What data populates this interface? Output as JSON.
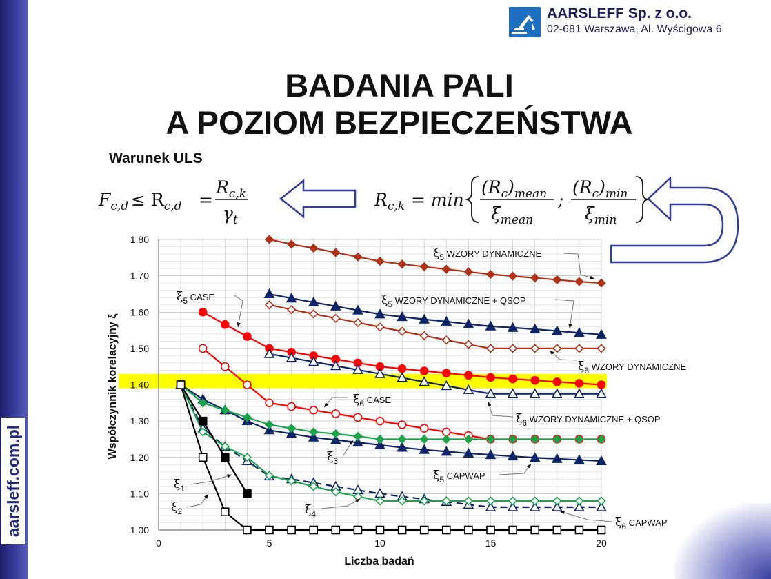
{
  "side_url": "aarsleff.com.pl",
  "logo": {
    "name": "AARSLEFF Sp. z o.o.",
    "address": "02-681 Warszawa, Al. Wyścigowa 6"
  },
  "title": {
    "line1": "BADANIA PALI",
    "line2": "A POZIOM BEZPIECZEŃSTWA"
  },
  "uls_label": "Warunek ULS",
  "formula_left": {
    "lhs": "F",
    "lhs_sub": "c,d",
    "leq": "≤ R",
    "r_sub": "c,d",
    "eq": "=",
    "num": "R",
    "num_sub": "c,k",
    "den": "γ",
    "den_sub": "t"
  },
  "formula_right": {
    "lhs": "R",
    "lhs_sub": "c,k",
    "eq": "= min",
    "n1": "(R",
    "n1_sub": "c",
    "n1_rest": ")",
    "n1_sub2": "mean",
    "d1": "ξ",
    "d1_sub": "mean",
    "sep": ";",
    "n2": "(R",
    "n2_sub": "c",
    "n2_rest": ")",
    "n2_sub2": "min",
    "d2": "ξ",
    "d2_sub": "min"
  },
  "colors": {
    "navy": "#0d2566",
    "red": "#ff0000",
    "darkred": "#b03218",
    "green": "#1aa34a",
    "black": "#000000",
    "highlight": "#ffff00",
    "arrow": "#2e3e9a"
  },
  "chart_data": {
    "type": "line",
    "xlabel": "Liczba badań",
    "ylabel": "Współczynnik korelacyjny ξ",
    "xlim": [
      0,
      20
    ],
    "ylim": [
      1.0,
      1.8
    ],
    "xticks": [
      "0",
      "5",
      "10",
      "15",
      "20"
    ],
    "xtick_values": [
      0,
      5,
      10,
      15,
      20
    ],
    "yticks": [
      "1.00",
      "1.10",
      "1.20",
      "1.30",
      "1.40",
      "1.50",
      "1.60",
      "1.70",
      "1.80"
    ],
    "ytick_values": [
      1.0,
      1.1,
      1.2,
      1.3,
      1.4,
      1.5,
      1.6,
      1.7,
      1.8
    ],
    "grid": true,
    "highlight_band": [
      1.39,
      1.43
    ],
    "series": [
      {
        "id": "xi5_dyn",
        "color": "#b03218",
        "marker": "diamond-filled",
        "dashed": false,
        "x": [
          5,
          6,
          7,
          8,
          9,
          10,
          11,
          12,
          13,
          14,
          15,
          16,
          17,
          18,
          19,
          20
        ],
        "y": [
          1.8,
          1.787,
          1.776,
          1.764,
          1.752,
          1.74,
          1.732,
          1.725,
          1.718,
          1.711,
          1.704,
          1.699,
          1.694,
          1.689,
          1.684,
          1.68
        ]
      },
      {
        "id": "xi5_dyn_qsop",
        "color": "#0d2566",
        "marker": "triangle-filled",
        "dashed": false,
        "x": [
          5,
          6,
          7,
          8,
          9,
          10,
          11,
          12,
          13,
          14,
          15,
          16,
          17,
          18,
          19,
          20
        ],
        "y": [
          1.65,
          1.638,
          1.627,
          1.616,
          1.605,
          1.594,
          1.587,
          1.58,
          1.574,
          1.567,
          1.561,
          1.557,
          1.553,
          1.548,
          1.543,
          1.538
        ]
      },
      {
        "id": "xi6_dyn",
        "color": "#b03218",
        "marker": "diamond-open",
        "dashed": false,
        "x": [
          5,
          6,
          7,
          8,
          9,
          10,
          11,
          12,
          13,
          14,
          15,
          16,
          17,
          18,
          19,
          20
        ],
        "y": [
          1.62,
          1.607,
          1.595,
          1.583,
          1.571,
          1.559,
          1.547,
          1.535,
          1.523,
          1.511,
          1.5,
          1.5,
          1.5,
          1.5,
          1.5,
          1.5
        ]
      },
      {
        "id": "xi5_case",
        "color": "#ff0000",
        "marker": "circle-filled",
        "dashed": false,
        "x": [
          2,
          3,
          4,
          5,
          6,
          7,
          8,
          9,
          10,
          11,
          12,
          13,
          14,
          15,
          16,
          17,
          18,
          19,
          20
        ],
        "y": [
          1.6,
          1.566,
          1.533,
          1.5,
          1.49,
          1.48,
          1.47,
          1.46,
          1.45,
          1.444,
          1.438,
          1.432,
          1.426,
          1.42,
          1.416,
          1.412,
          1.408,
          1.404,
          1.4
        ]
      },
      {
        "id": "xi6_dyn_qsop",
        "color": "#0d2566",
        "marker": "triangle-open",
        "dashed": false,
        "x": [
          5,
          6,
          7,
          8,
          9,
          10,
          11,
          12,
          13,
          14,
          15,
          16,
          17,
          18,
          19,
          20
        ],
        "y": [
          1.485,
          1.474,
          1.463,
          1.452,
          1.441,
          1.43,
          1.419,
          1.408,
          1.397,
          1.386,
          1.375,
          1.375,
          1.375,
          1.375,
          1.375,
          1.375
        ]
      },
      {
        "id": "xi6_case",
        "color": "#ff0000",
        "marker": "circle-open",
        "dashed": false,
        "x": [
          2,
          3,
          4,
          5,
          6,
          7,
          8,
          9,
          10,
          11,
          12,
          13,
          14,
          15,
          16,
          17,
          18,
          19,
          20
        ],
        "y": [
          1.5,
          1.45,
          1.4,
          1.35,
          1.34,
          1.33,
          1.32,
          1.31,
          1.3,
          1.29,
          1.28,
          1.27,
          1.26,
          1.25,
          1.25,
          1.25,
          1.25,
          1.25,
          1.25
        ]
      },
      {
        "id": "xi5_capwap",
        "color": "#0d2566",
        "marker": "triangle-filled",
        "dashed": false,
        "x": [
          1,
          2,
          3,
          4,
          5,
          6,
          7,
          8,
          9,
          10,
          11,
          12,
          13,
          14,
          15,
          16,
          17,
          18,
          19,
          20
        ],
        "y": [
          1.4,
          1.36,
          1.33,
          1.3,
          1.275,
          1.265,
          1.255,
          1.248,
          1.241,
          1.234,
          1.227,
          1.221,
          1.216,
          1.211,
          1.207,
          1.203,
          1.199,
          1.196,
          1.193,
          1.19
        ]
      },
      {
        "id": "xi3",
        "color": "#1aa34a",
        "marker": "diamond-filled",
        "dashed": false,
        "x": [
          1,
          2,
          3,
          4,
          5,
          6,
          7,
          8,
          9,
          10,
          11,
          12,
          13,
          14,
          15,
          16,
          17,
          18,
          19,
          20
        ],
        "y": [
          1.4,
          1.35,
          1.33,
          1.31,
          1.29,
          1.28,
          1.27,
          1.265,
          1.258,
          1.25,
          1.25,
          1.25,
          1.25,
          1.25,
          1.25,
          1.25,
          1.25,
          1.25,
          1.25,
          1.25
        ]
      },
      {
        "id": "xi6_capwap",
        "color": "#0d2566",
        "marker": "triangle-open",
        "dashed": true,
        "x": [
          1,
          2,
          3,
          4,
          5,
          6,
          7,
          8,
          9,
          10,
          11,
          12,
          13,
          14,
          15,
          16,
          17,
          18,
          19,
          20
        ],
        "y": [
          1.4,
          1.28,
          1.23,
          1.19,
          1.148,
          1.14,
          1.13,
          1.12,
          1.11,
          1.1,
          1.092,
          1.085,
          1.078,
          1.07,
          1.063,
          1.063,
          1.063,
          1.063,
          1.063,
          1.063
        ]
      },
      {
        "id": "xi4",
        "color": "#1aa34a",
        "marker": "diamond-open",
        "dashed": false,
        "x": [
          1,
          2,
          3,
          4,
          5,
          6,
          7,
          8,
          9,
          10,
          11,
          12,
          13,
          14,
          15,
          16,
          17,
          18,
          19,
          20
        ],
        "y": [
          1.4,
          1.27,
          1.23,
          1.2,
          1.15,
          1.135,
          1.12,
          1.105,
          1.092,
          1.08,
          1.08,
          1.08,
          1.08,
          1.08,
          1.08,
          1.08,
          1.08,
          1.08,
          1.08,
          1.08
        ]
      },
      {
        "id": "xi1",
        "color": "#000000",
        "marker": "square-filled",
        "dashed": false,
        "x": [
          1,
          2,
          3,
          4
        ],
        "y": [
          1.4,
          1.3,
          1.2,
          1.1
        ]
      },
      {
        "id": "xi2",
        "color": "#000000",
        "marker": "square-open",
        "dashed": false,
        "x": [
          1,
          2,
          3,
          4,
          5,
          6,
          7,
          8,
          9,
          10,
          11,
          12,
          13,
          14,
          15,
          16,
          17,
          18,
          19,
          20
        ],
        "y": [
          1.4,
          1.2,
          1.05,
          1.0,
          1.0,
          1.0,
          1.0,
          1.0,
          1.0,
          1.0,
          1.0,
          1.0,
          1.0,
          1.0,
          1.0,
          1.0,
          1.0,
          1.0,
          1.0,
          1.0
        ]
      }
    ],
    "annotations": [
      {
        "sym": "ξ",
        "sub": "5",
        "text": " WZORY DYNAMICZNE"
      },
      {
        "sym": "ξ",
        "sub": "5",
        "text": " CASE"
      },
      {
        "sym": "ξ",
        "sub": "5",
        "text": " WZORY DYNAMICZNE + QSOP"
      },
      {
        "sym": "ξ",
        "sub": "6",
        "text": " WZORY DYNAMICZNE"
      },
      {
        "sym": "ξ",
        "sub": "6",
        "text": " CASE"
      },
      {
        "sym": "ξ",
        "sub": "6",
        "text": " WZORY DYNAMICZNE + QSOP"
      },
      {
        "sym": "ξ",
        "sub": "3",
        "text": ""
      },
      {
        "sym": "ξ",
        "sub": "5",
        "text": " CAPWAP"
      },
      {
        "sym": "ξ",
        "sub": "1",
        "text": ""
      },
      {
        "sym": "ξ",
        "sub": "2",
        "text": ""
      },
      {
        "sym": "ξ",
        "sub": "4",
        "text": ""
      },
      {
        "sym": "ξ",
        "sub": "6",
        "text": " CAPWAP"
      }
    ]
  }
}
